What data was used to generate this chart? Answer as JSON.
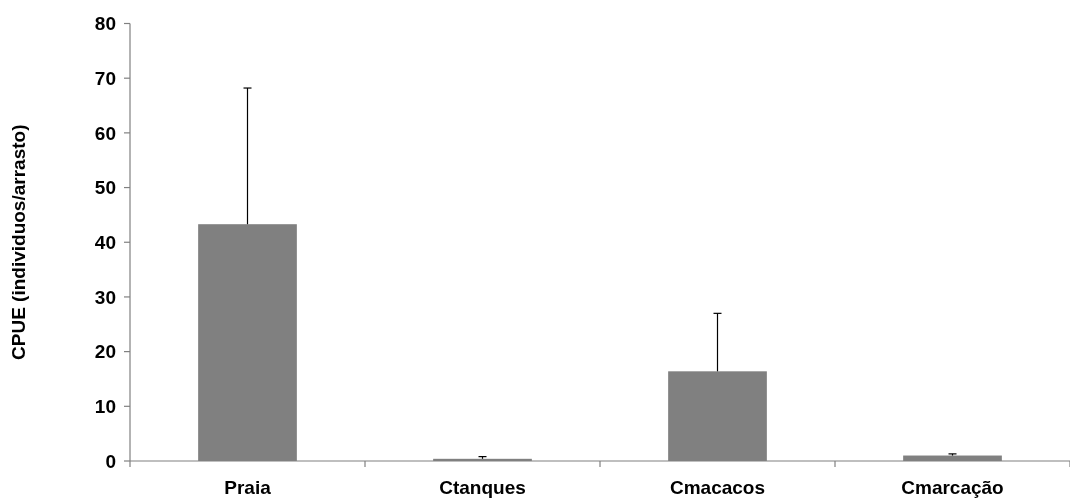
{
  "chart_data": {
    "type": "bar",
    "ylabel": "CPUE (individuos/arrasto)",
    "categories": [
      "Praia",
      "Ctanques",
      "Cmacacos",
      "Cmarcação"
    ],
    "values": [
      43.3,
      0.4,
      16.4,
      1.0
    ],
    "color": "#808080",
    "errors": [
      [
        43.3,
        68.2
      ],
      [
        0.4,
        0.8
      ],
      [
        16.4,
        27.0
      ],
      [
        1.0,
        1.3
      ]
    ],
    "ylim": [
      0,
      80
    ],
    "yticks": [
      0,
      10,
      20,
      30,
      40,
      50,
      60,
      70,
      80
    ]
  }
}
